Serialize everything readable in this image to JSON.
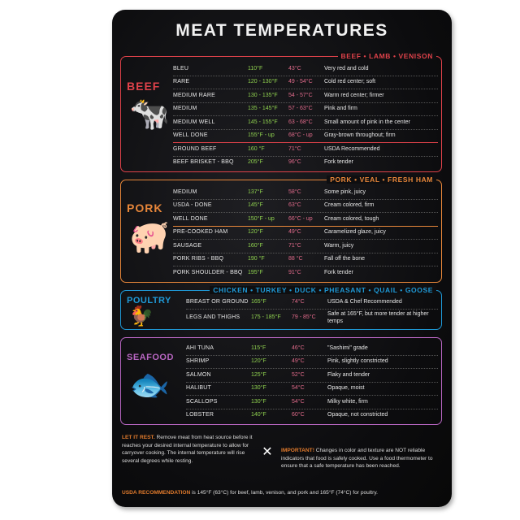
{
  "title": "MEAT TEMPERATURES",
  "colors": {
    "beef": "#e0424a",
    "pork": "#e8873a",
    "poultry": "#1f9ad8",
    "seafood": "#b866c2",
    "fahrenheit": "#8fd14f",
    "celsius": "#e06a8a"
  },
  "sections": [
    {
      "key": "beef",
      "name": "BEEF",
      "subtitle": "BEEF • LAMB • VENISON",
      "icon": "cow-icon",
      "sep_after": 5,
      "rows": [
        {
          "cut": "BLEU",
          "f": "110°F",
          "c": "43°C",
          "desc": "Very red and cold"
        },
        {
          "cut": "RARE",
          "f": "120 - 130°F",
          "c": "49 - 54°C",
          "desc": "Cold red center; soft"
        },
        {
          "cut": "MEDIUM RARE",
          "f": "130 - 135°F",
          "c": "54 - 57°C",
          "desc": "Warm red center; firmer"
        },
        {
          "cut": "MEDIUM",
          "f": "135 - 145°F",
          "c": "57 - 63°C",
          "desc": "Pink and firm"
        },
        {
          "cut": "MEDIUM WELL",
          "f": "145 - 155°F",
          "c": "63 - 68°C",
          "desc": "Small amount of pink in the center"
        },
        {
          "cut": "WELL DONE",
          "f": "155°F - up",
          "c": "68°C - up",
          "desc": "Gray-brown throughout; firm"
        },
        {
          "cut": "GROUND BEEF",
          "f": "160 °F",
          "c": "71°C",
          "desc": "USDA Recommended"
        },
        {
          "cut": "BEEF BRISKET - BBQ",
          "f": "205°F",
          "c": "96°C",
          "desc": "Fork tender"
        }
      ]
    },
    {
      "key": "pork",
      "name": "PORK",
      "subtitle": "PORK • VEAL • FRESH HAM",
      "icon": "pig-icon",
      "sep_after": 2,
      "rows": [
        {
          "cut": "MEDIUM",
          "f": "137°F",
          "c": "58°C",
          "desc": "Some pink, juicy"
        },
        {
          "cut": "USDA - DONE",
          "f": "145°F",
          "c": "63°C",
          "desc": "Cream colored, firm"
        },
        {
          "cut": "WELL DONE",
          "f": "150°F - up",
          "c": "66°C - up",
          "desc": "Cream colored, tough"
        },
        {
          "cut": "PRE-COOKED HAM",
          "f": "120°F",
          "c": "49°C",
          "desc": "Caramelized glaze, juicy"
        },
        {
          "cut": "SAUSAGE",
          "f": "160°F",
          "c": "71°C",
          "desc": "Warm, juicy"
        },
        {
          "cut": "PORK RIBS - BBQ",
          "f": "190 °F",
          "c": "88 °C",
          "desc": "Fall off the bone"
        },
        {
          "cut": "PORK SHOULDER - BBQ",
          "f": "195°F",
          "c": "91°C",
          "desc": "Fork tender"
        }
      ]
    },
    {
      "key": "poultry",
      "name": "POULTRY",
      "subtitle": "CHICKEN • TURKEY • DUCK • PHEASANT • QUAIL • GOOSE",
      "icon": "chicken-icon",
      "sep_after": -1,
      "rows": [
        {
          "cut": "BREAST OR GROUND",
          "f": "165°F",
          "c": "74°C",
          "desc": "USDA & Chef Recommended"
        },
        {
          "cut": "LEGS AND THIGHS",
          "f": "175 - 185°F",
          "c": "79 - 85°C",
          "desc": "Safe at 165°F, but more tender at higher temps"
        }
      ]
    },
    {
      "key": "seafood",
      "name": "SEAFOOD",
      "subtitle": "",
      "icon": "fish-icon",
      "sep_after": -1,
      "rows": [
        {
          "cut": "AHI TUNA",
          "f": "115°F",
          "c": "46°C",
          "desc": "\"Sashimi\" grade"
        },
        {
          "cut": "SHRIMP",
          "f": "120°F",
          "c": "49°C",
          "desc": "Pink, slightly constricted"
        },
        {
          "cut": "SALMON",
          "f": "125°F",
          "c": "52°C",
          "desc": "Flaky and tender"
        },
        {
          "cut": "HALIBUT",
          "f": "130°F",
          "c": "54°C",
          "desc": "Opaque, moist"
        },
        {
          "cut": "SCALLOPS",
          "f": "130°F",
          "c": "54°C",
          "desc": "Milky white, firm"
        },
        {
          "cut": "LOBSTER",
          "f": "140°F",
          "c": "60°C",
          "desc": "Opaque, not constricted"
        }
      ]
    }
  ],
  "footer": {
    "rest_label": "LET IT REST.",
    "rest_text": "Remove meat from heat source before it reaches your desired internal temperature to allow for carryover cooking. The internal temperature will rise several degrees while resting.",
    "important_label": "IMPORTANT!",
    "important_text": "Changes in color and texture are NOT reliable indicators that food is safely cooked. Use a food thermometer to ensure that a safe temperature has been reached.",
    "usda_label": "USDA RECOMMENDATION",
    "usda_text": "is 145°F (63°C) for beef, lamb, venison, and pork and 165°F (74°C) for poultry.",
    "icon": "crossed-fork-spatula-icon"
  }
}
